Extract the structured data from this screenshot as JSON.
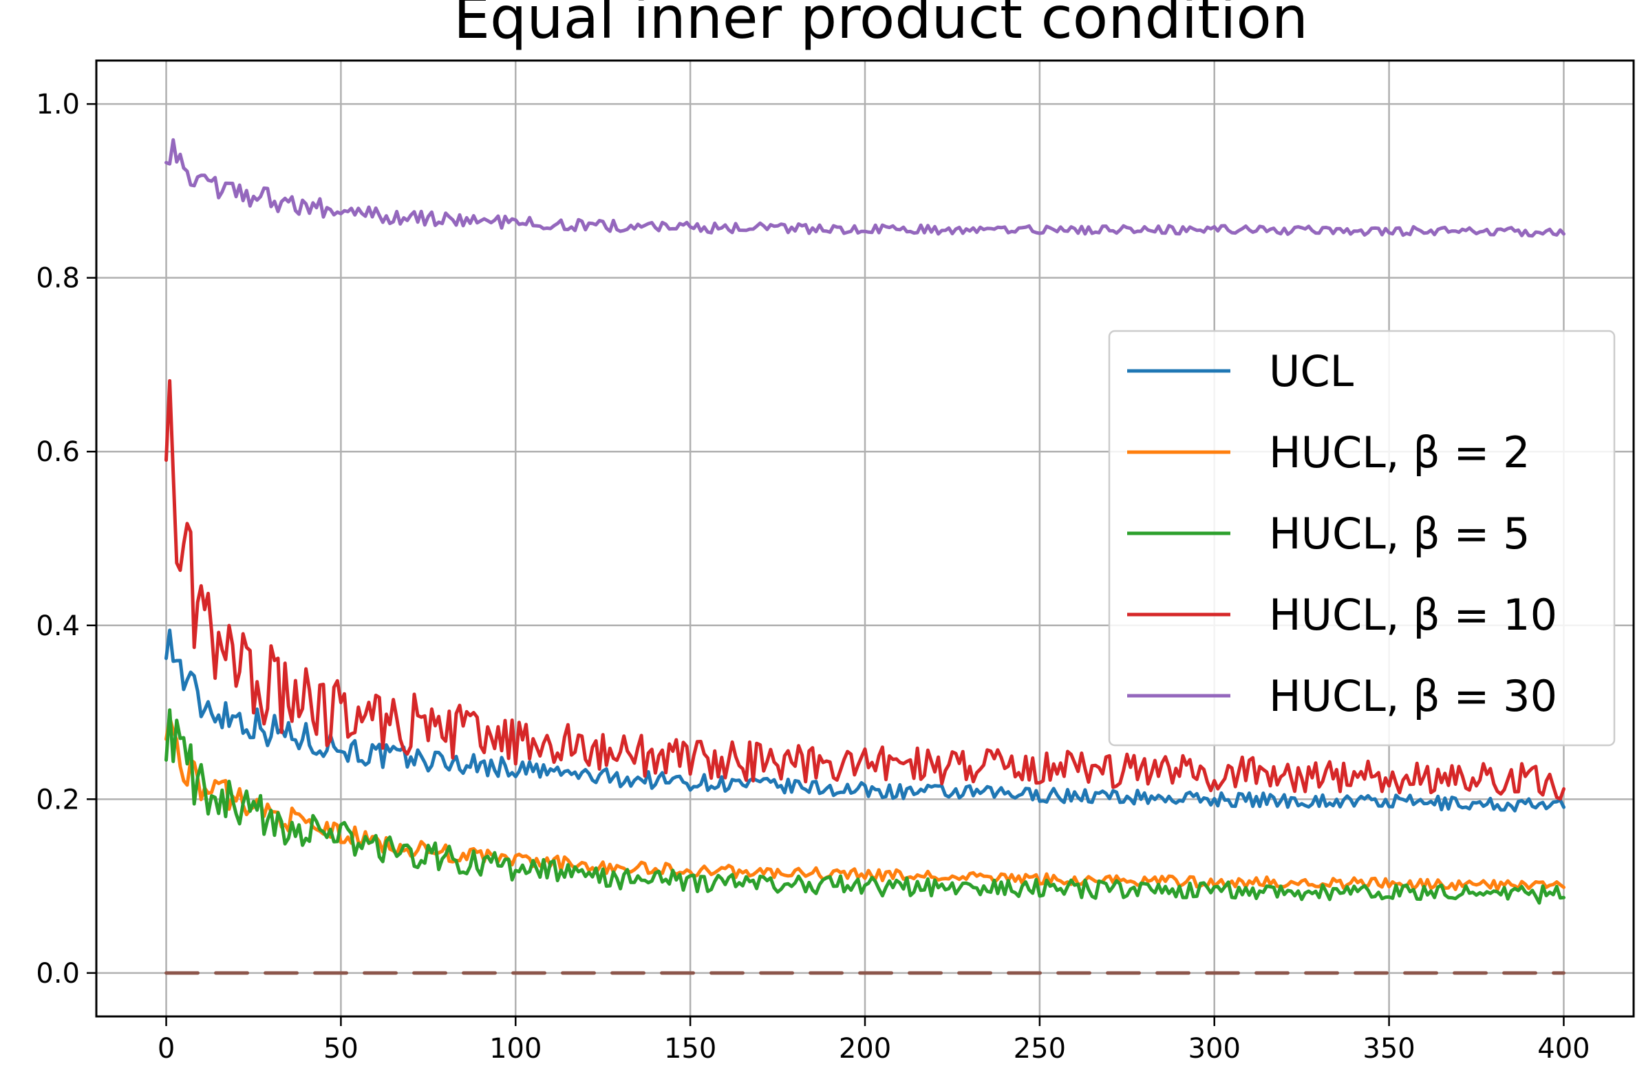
{
  "chart_data": {
    "type": "line",
    "title": "Equal inner product condition",
    "xlabel": "",
    "ylabel": "",
    "xlim": [
      -20,
      420
    ],
    "ylim": [
      -0.05,
      1.05
    ],
    "xticks": [
      0,
      50,
      100,
      150,
      200,
      250,
      300,
      350,
      400
    ],
    "xtick_labels": [
      "0",
      "50",
      "100",
      "150",
      "200",
      "250",
      "300",
      "350",
      "400"
    ],
    "yticks": [
      0.0,
      0.2,
      0.4,
      0.6,
      0.8,
      1.0
    ],
    "ytick_labels": [
      "0.0",
      "0.2",
      "0.4",
      "0.6",
      "0.8",
      "1.0"
    ],
    "grid": true,
    "legend_position": "center-right",
    "series": [
      {
        "name": "UCL",
        "color": "#1f77b4",
        "x": [
          0,
          5,
          10,
          20,
          30,
          40,
          50,
          60,
          75,
          100,
          125,
          150,
          200,
          250,
          300,
          350,
          400
        ],
        "y": [
          0.39,
          0.34,
          0.31,
          0.295,
          0.28,
          0.27,
          0.26,
          0.25,
          0.245,
          0.235,
          0.225,
          0.22,
          0.21,
          0.205,
          0.2,
          0.197,
          0.192
        ]
      },
      {
        "name": "HUCL, β = 2",
        "color": "#ff7f0e",
        "x": [
          0,
          5,
          10,
          20,
          30,
          40,
          50,
          60,
          75,
          100,
          125,
          150,
          200,
          250,
          300,
          350,
          400
        ],
        "y": [
          0.29,
          0.24,
          0.215,
          0.2,
          0.185,
          0.17,
          0.16,
          0.15,
          0.14,
          0.13,
          0.122,
          0.118,
          0.113,
          0.108,
          0.105,
          0.103,
          0.1
        ]
      },
      {
        "name": "HUCL, β = 5",
        "color": "#2ca02c",
        "x": [
          0,
          5,
          10,
          20,
          30,
          40,
          50,
          60,
          75,
          100,
          125,
          150,
          200,
          250,
          300,
          350,
          400
        ],
        "y": [
          0.28,
          0.25,
          0.21,
          0.19,
          0.175,
          0.165,
          0.155,
          0.145,
          0.135,
          0.12,
          0.11,
          0.105,
          0.1,
          0.097,
          0.095,
          0.093,
          0.09
        ]
      },
      {
        "name": "HUCL, β = 10",
        "color": "#d62728",
        "x": [
          0,
          3,
          6,
          10,
          20,
          30,
          40,
          50,
          60,
          75,
          100,
          125,
          150,
          200,
          250,
          300,
          350,
          400
        ],
        "y": [
          0.66,
          0.52,
          0.46,
          0.4,
          0.35,
          0.33,
          0.31,
          0.3,
          0.29,
          0.285,
          0.265,
          0.255,
          0.245,
          0.24,
          0.235,
          0.23,
          0.225,
          0.22
        ]
      },
      {
        "name": "HUCL, β = 30",
        "color": "#9467bd",
        "x": [
          0,
          5,
          10,
          20,
          30,
          40,
          50,
          60,
          75,
          100,
          125,
          150,
          200,
          250,
          300,
          350,
          400
        ],
        "y": [
          0.95,
          0.93,
          0.91,
          0.9,
          0.89,
          0.883,
          0.876,
          0.872,
          0.868,
          0.863,
          0.86,
          0.858,
          0.856,
          0.855,
          0.855,
          0.854,
          0.853
        ]
      },
      {
        "name": "",
        "color": "#8c564b",
        "dashed": true,
        "x": [
          0,
          400
        ],
        "y": [
          0.0,
          0.0
        ]
      }
    ]
  }
}
